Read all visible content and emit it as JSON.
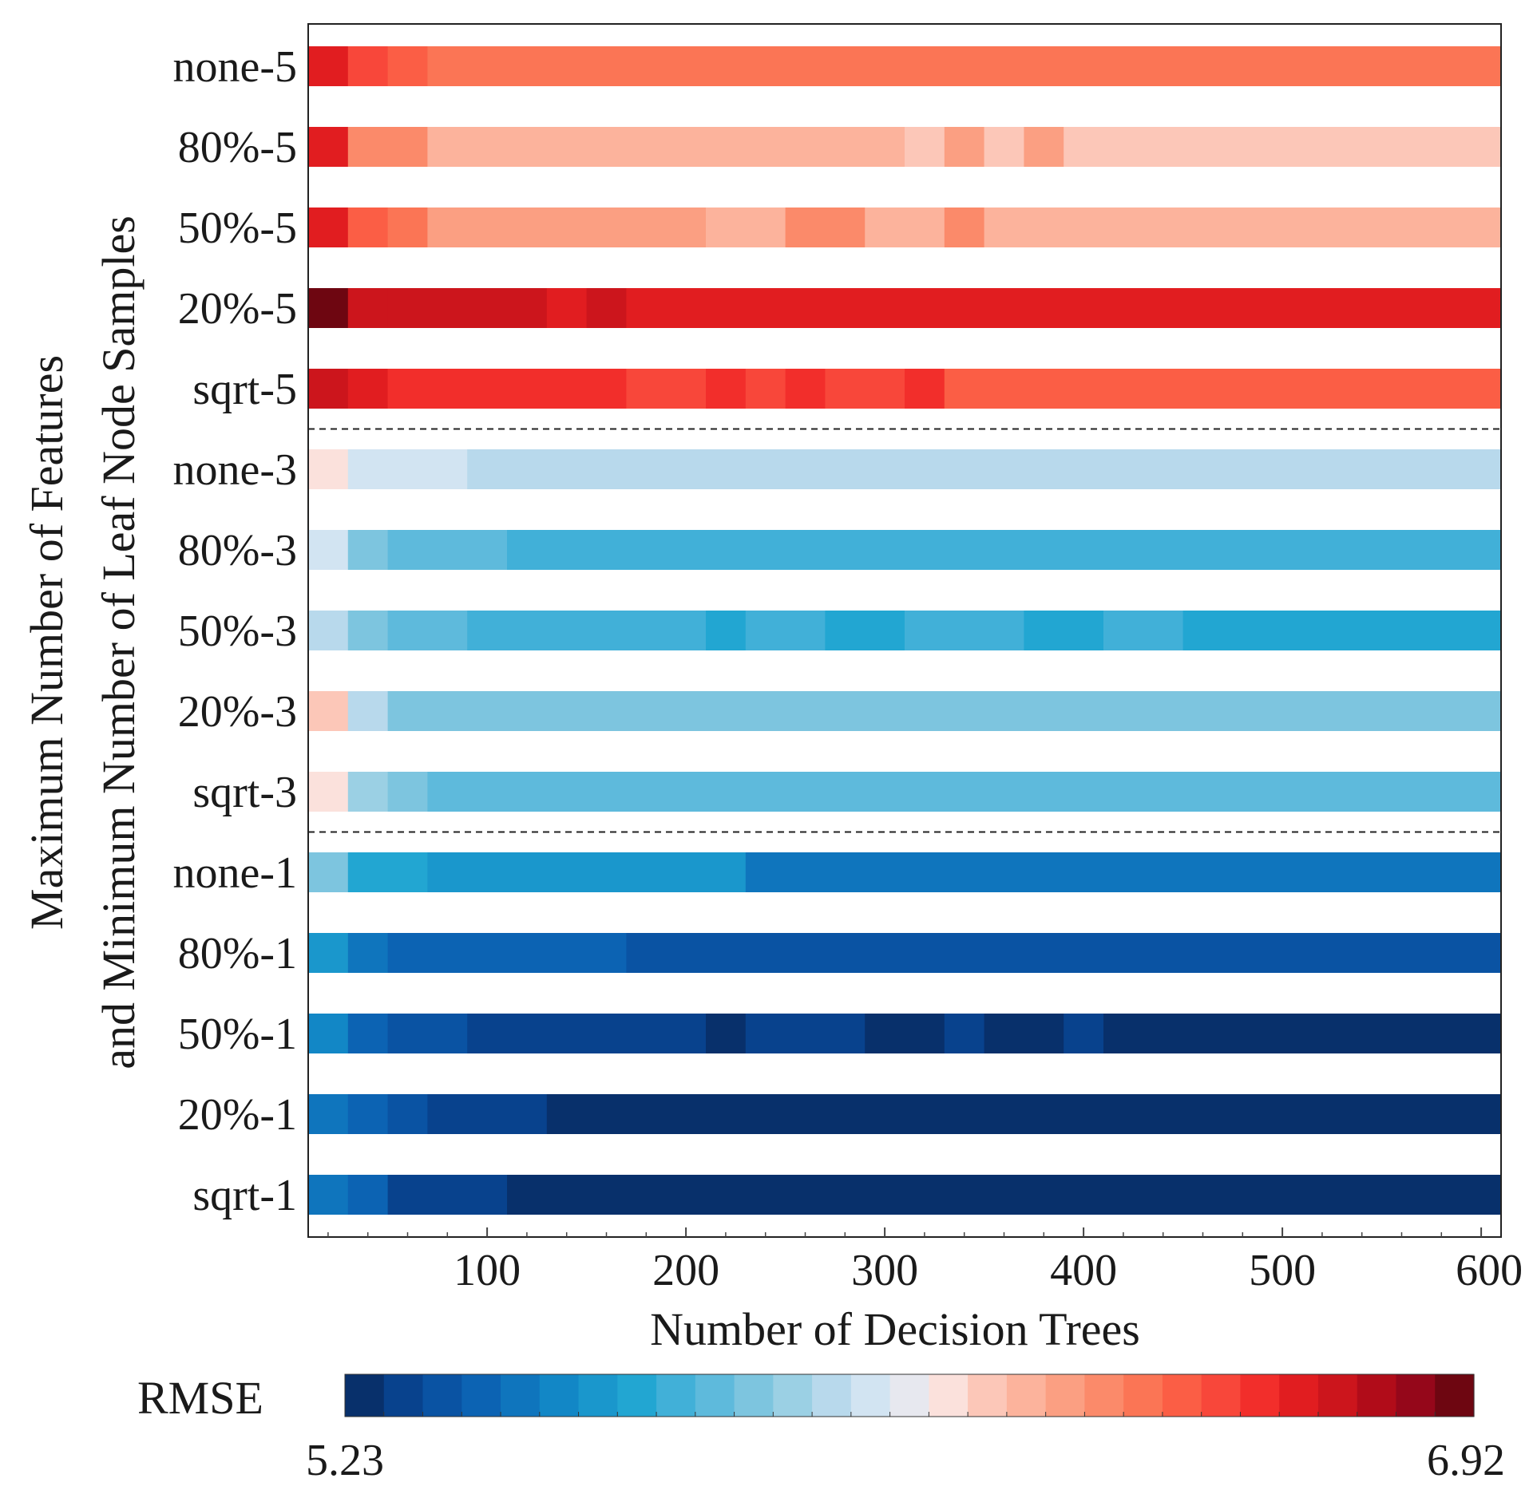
{
  "chart_data": {
    "type": "heatmap",
    "xlabel": "Number of Decision Trees",
    "ylabel": [
      "Maximum Number of Features",
      "and Minimum Number of Leaf Node Samples"
    ],
    "x_ticks": [
      "100",
      "200",
      "300",
      "400",
      "500",
      "600"
    ],
    "x_tick_values": [
      100,
      200,
      300,
      400,
      500,
      600
    ],
    "x_range": [
      10,
      610
    ],
    "colorbar": {
      "label": "RMSE",
      "min": 5.23,
      "max": 6.92,
      "min_label": "5.23",
      "max_label": "6.92"
    },
    "colormap": [
      "#08306b",
      "#08428d",
      "#0a53a3",
      "#0c63b3",
      "#0f75bd",
      "#1287c6",
      "#1a97cc",
      "#22a6d2",
      "#41b0d8",
      "#5ebadc",
      "#7dc5df",
      "#9bd0e4",
      "#b8d9ec",
      "#d2e4f2",
      "#e7e8ef",
      "#fbe1dc",
      "#fcc7b8",
      "#fcb39c",
      "#fb9f82",
      "#fb8a6a",
      "#fb7555",
      "#fb5e45",
      "#f8473a",
      "#f22e2b",
      "#e11d20",
      "#cc151c",
      "#b10c19",
      "#95071a",
      "#6e0611"
    ],
    "rows": [
      {
        "label": "none-5",
        "cells": [
          [
            10,
            30,
            0.87
          ],
          [
            30,
            50,
            0.79
          ],
          [
            50,
            70,
            0.76
          ],
          [
            70,
            110,
            0.73
          ],
          [
            110,
            610,
            0.7
          ]
        ]
      },
      {
        "label": "80%-5",
        "cells": [
          [
            10,
            30,
            0.87
          ],
          [
            30,
            70,
            0.67
          ],
          [
            70,
            310,
            0.61
          ],
          [
            310,
            330,
            0.58
          ],
          [
            330,
            350,
            0.63
          ],
          [
            350,
            370,
            0.58
          ],
          [
            370,
            390,
            0.63
          ],
          [
            390,
            610,
            0.58
          ]
        ]
      },
      {
        "label": "50%-5",
        "cells": [
          [
            10,
            30,
            0.87
          ],
          [
            30,
            50,
            0.76
          ],
          [
            50,
            70,
            0.73
          ],
          [
            70,
            210,
            0.64
          ],
          [
            210,
            250,
            0.61
          ],
          [
            250,
            290,
            0.67
          ],
          [
            290,
            330,
            0.61
          ],
          [
            330,
            350,
            0.67
          ],
          [
            350,
            610,
            0.61
          ]
        ]
      },
      {
        "label": "20%-5",
        "cells": [
          [
            10,
            30,
            1.0
          ],
          [
            30,
            50,
            0.9
          ],
          [
            50,
            130,
            0.88
          ],
          [
            130,
            150,
            0.84
          ],
          [
            150,
            170,
            0.88
          ],
          [
            170,
            610,
            0.84
          ]
        ]
      },
      {
        "label": "sqrt-5",
        "cells": [
          [
            10,
            30,
            0.9
          ],
          [
            30,
            50,
            0.84
          ],
          [
            50,
            170,
            0.82
          ],
          [
            170,
            210,
            0.79
          ],
          [
            210,
            230,
            0.82
          ],
          [
            230,
            250,
            0.79
          ],
          [
            250,
            270,
            0.82
          ],
          [
            270,
            310,
            0.79
          ],
          [
            310,
            330,
            0.82
          ],
          [
            330,
            610,
            0.76
          ]
        ]
      },
      {
        "label": "none-3",
        "cells": [
          [
            10,
            30,
            0.55
          ],
          [
            30,
            90,
            0.46
          ],
          [
            90,
            610,
            0.42
          ]
        ]
      },
      {
        "label": "80%-3",
        "cells": [
          [
            10,
            30,
            0.46
          ],
          [
            30,
            50,
            0.37
          ],
          [
            50,
            110,
            0.32
          ],
          [
            110,
            610,
            0.29
          ]
        ]
      },
      {
        "label": "50%-3",
        "cells": [
          [
            10,
            30,
            0.44
          ],
          [
            30,
            50,
            0.35
          ],
          [
            50,
            90,
            0.32
          ],
          [
            90,
            210,
            0.29
          ],
          [
            210,
            230,
            0.24
          ],
          [
            230,
            270,
            0.29
          ],
          [
            270,
            310,
            0.24
          ],
          [
            310,
            370,
            0.29
          ],
          [
            370,
            410,
            0.24
          ],
          [
            410,
            450,
            0.29
          ],
          [
            450,
            610,
            0.24
          ]
        ]
      },
      {
        "label": "20%-3",
        "cells": [
          [
            10,
            30,
            0.58
          ],
          [
            30,
            50,
            0.44
          ],
          [
            50,
            110,
            0.37
          ],
          [
            110,
            610,
            0.34
          ]
        ]
      },
      {
        "label": "sqrt-3",
        "cells": [
          [
            10,
            30,
            0.52
          ],
          [
            30,
            50,
            0.39
          ],
          [
            50,
            70,
            0.36
          ],
          [
            70,
            610,
            0.31
          ]
        ]
      },
      {
        "label": "none-1",
        "cells": [
          [
            10,
            30,
            0.35
          ],
          [
            30,
            70,
            0.24
          ],
          [
            70,
            230,
            0.2
          ],
          [
            230,
            610,
            0.16
          ]
        ]
      },
      {
        "label": "80%-1",
        "cells": [
          [
            10,
            30,
            0.2
          ],
          [
            30,
            50,
            0.15
          ],
          [
            50,
            170,
            0.1
          ],
          [
            170,
            610,
            0.08
          ]
        ]
      },
      {
        "label": "50%-1",
        "cells": [
          [
            10,
            30,
            0.18
          ],
          [
            30,
            50,
            0.1
          ],
          [
            50,
            90,
            0.07
          ],
          [
            90,
            210,
            0.04
          ],
          [
            210,
            230,
            0.0
          ],
          [
            230,
            290,
            0.04
          ],
          [
            290,
            330,
            0.01
          ],
          [
            330,
            350,
            0.04
          ],
          [
            350,
            390,
            0.01
          ],
          [
            390,
            410,
            0.04
          ],
          [
            410,
            610,
            0.01
          ]
        ]
      },
      {
        "label": "20%-1",
        "cells": [
          [
            10,
            30,
            0.16
          ],
          [
            30,
            50,
            0.1
          ],
          [
            50,
            70,
            0.07
          ],
          [
            70,
            130,
            0.04
          ],
          [
            130,
            610,
            0.01
          ]
        ]
      },
      {
        "label": "sqrt-1",
        "cells": [
          [
            10,
            30,
            0.16
          ],
          [
            30,
            50,
            0.09
          ],
          [
            50,
            110,
            0.04
          ],
          [
            110,
            610,
            0.01
          ]
        ]
      }
    ],
    "separators_after_rows": [
      4,
      9
    ]
  }
}
